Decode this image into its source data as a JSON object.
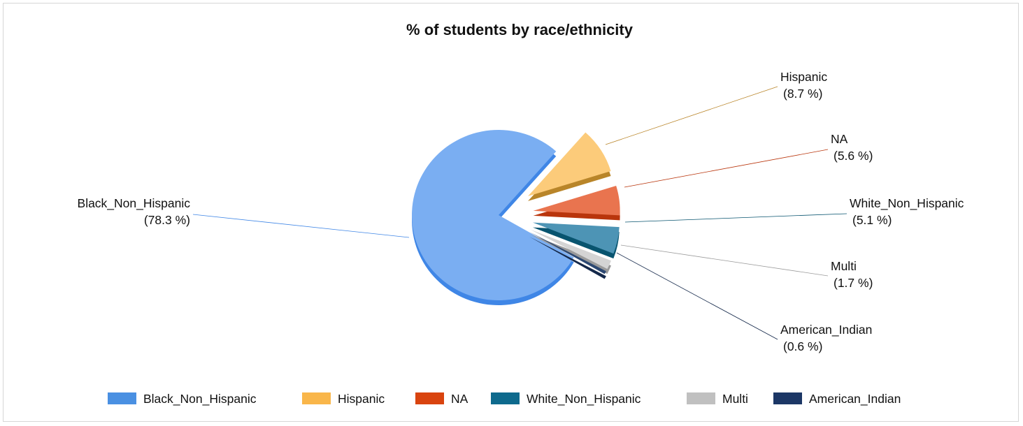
{
  "chart_data": {
    "type": "pie",
    "title": "% of students by race/ethnicity",
    "slices": [
      {
        "label": "Black_Non_Hispanic",
        "value": 78.3,
        "value_text": "(78.3 %)",
        "color": "#7aaef2",
        "side_color": "#3f86e6"
      },
      {
        "label": "Hispanic",
        "value": 8.7,
        "value_text": "(8.7 %)",
        "color": "#fccb7a",
        "side_color": "#b98529"
      },
      {
        "label": "NA",
        "value": 5.6,
        "value_text": "(5.6 %)",
        "color": "#e9744f",
        "side_color": "#b9350c"
      },
      {
        "label": "White_Non_Hispanic",
        "value": 5.1,
        "value_text": "(5.1 %)",
        "color": "#4d94b5",
        "side_color": "#08546f"
      },
      {
        "label": "Multi",
        "value": 1.7,
        "value_text": "(1.7 %)",
        "color": "#d4d4d4",
        "side_color": "#9a9a9a"
      },
      {
        "label": "American_Indian",
        "value": 0.6,
        "value_text": "(0.6 %)",
        "color": "#2c4872",
        "side_color": "#14284a"
      }
    ],
    "legend": {
      "placement": "bottom",
      "items": [
        {
          "label": "Black_Non_Hispanic",
          "color": "#4a90e2"
        },
        {
          "label": "Hispanic",
          "color": "#f9b64a"
        },
        {
          "label": "NA",
          "color": "#d9440f"
        },
        {
          "label": "White_Non_Hispanic",
          "color": "#0e6a8d"
        },
        {
          "label": "Multi",
          "color": "#c0c0c0"
        },
        {
          "label": "American_Indian",
          "color": "#1c3766"
        }
      ]
    }
  }
}
